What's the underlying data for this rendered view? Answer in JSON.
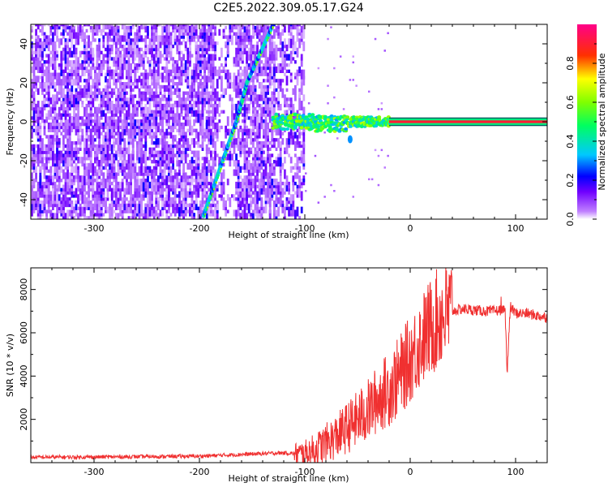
{
  "title": "C2E5.2022.309.05.17.G24",
  "chart_data": [
    {
      "type": "heatmap",
      "title": "",
      "xlabel": "Height of straight line (km)",
      "ylabel": "Frequency (Hz)",
      "xlim": [
        -360,
        130
      ],
      "ylim": [
        -50,
        50
      ],
      "xticks": [
        -300,
        -200,
        -100,
        0,
        100
      ],
      "yticks": [
        -40,
        -20,
        0,
        20,
        40
      ],
      "colorbar": {
        "label": "Normalized spectral amplitude",
        "range": [
          0,
          1
        ],
        "ticks": [
          "0.0",
          "0.2",
          "0.4",
          "0.6",
          "0.8"
        ],
        "colormap": [
          "#ffffff",
          "#8800ff",
          "#0000ff",
          "#00ffff",
          "#00ff00",
          "#ffff00",
          "#ff0000",
          "#ff0088"
        ]
      },
      "features": [
        {
          "name": "noise",
          "x_range": [
            -360,
            -100
          ],
          "freq_range": [
            -50,
            50
          ],
          "amplitude": 0.1
        },
        {
          "name": "diagonal-track",
          "points": [
            [
              -196,
              -48
            ],
            [
              -178,
              -20
            ],
            [
              -165,
              0
            ],
            [
              -155,
              20
            ],
            [
              -130,
              50
            ]
          ],
          "amplitude": 0.35
        },
        {
          "name": "steady-tone",
          "x_range": [
            -130,
            130
          ],
          "frequency": 0,
          "amplitude": 0.9
        }
      ]
    },
    {
      "type": "line",
      "title": "",
      "xlabel": "Height of straight line (km)",
      "ylabel": "SNR (10 * v/v)",
      "xlim": [
        -360,
        130
      ],
      "ylim": [
        0,
        9000
      ],
      "xticks": [
        -300,
        -200,
        -100,
        0,
        100
      ],
      "yticks": [
        2000,
        4000,
        6000,
        8000
      ],
      "color": "#f03030",
      "x": [
        -360,
        -300,
        -250,
        -200,
        -150,
        -120,
        -100,
        -90,
        -80,
        -70,
        -60,
        -50,
        -40,
        -30,
        -20,
        -10,
        0,
        10,
        20,
        30,
        40,
        50,
        60,
        70,
        80,
        90,
        92,
        95,
        100,
        110,
        120,
        130
      ],
      "values": [
        250,
        260,
        280,
        300,
        400,
        450,
        400,
        600,
        900,
        1200,
        1600,
        2000,
        2400,
        3000,
        3400,
        4000,
        4800,
        5600,
        6300,
        6800,
        7000,
        7100,
        7050,
        7000,
        7000,
        7100,
        4200,
        7200,
        6900,
        6900,
        6800,
        6700
      ]
    }
  ]
}
